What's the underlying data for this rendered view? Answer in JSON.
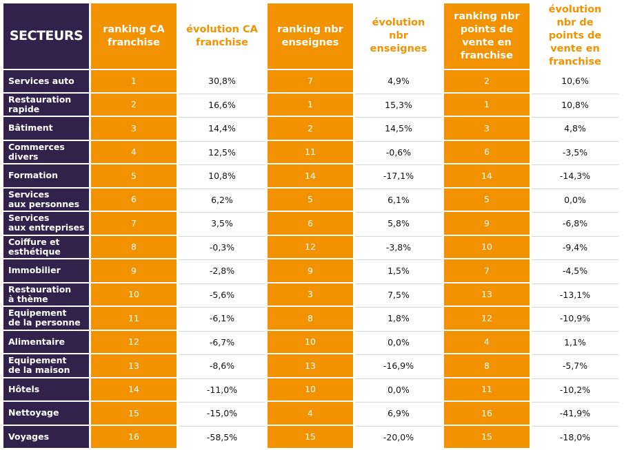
{
  "chart_data": {
    "type": "table",
    "columns": [
      "SECTEURS",
      "ranking CA franchise",
      "évolution CA franchise",
      "ranking nbr enseignes",
      "évolution nbr enseignes",
      "ranking nbr points de vente en franchise",
      "évolution nbr de points de vente en franchise"
    ],
    "rows": [
      [
        "Services auto",
        "1",
        "30,8%",
        "7",
        "4,9%",
        "2",
        "10,6%"
      ],
      [
        "Restauration\nrapide",
        "2",
        "16,6%",
        "1",
        "15,3%",
        "1",
        "10,8%"
      ],
      [
        "Bâtiment",
        "3",
        "14,4%",
        "2",
        "14,5%",
        "3",
        "4,8%"
      ],
      [
        "Commerces\ndivers",
        "4",
        "12,5%",
        "11",
        "-0,6%",
        "6",
        "-3,5%"
      ],
      [
        "Formation",
        "5",
        "10,8%",
        "14",
        "-17,1%",
        "14",
        "-14,3%"
      ],
      [
        "Services\naux personnes",
        "6",
        "6,2%",
        "5",
        "6,1%",
        "5",
        "0,0%"
      ],
      [
        "Services\naux entreprises",
        "7",
        "3,5%",
        "6",
        "5,8%",
        "9",
        "-6,8%"
      ],
      [
        "Coiffure et\nesthétique",
        "8",
        "-0,3%",
        "12",
        "-3,8%",
        "10",
        "-9,4%"
      ],
      [
        "Immobilier",
        "9",
        "-2,8%",
        "9",
        "1,5%",
        "7",
        "-4,5%"
      ],
      [
        "Restauration\nà thème",
        "10",
        "-5,6%",
        "3",
        "7,5%",
        "13",
        "-13,1%"
      ],
      [
        "Equipement\nde la personne",
        "11",
        "-6,1%",
        "8",
        "1,8%",
        "12",
        "-10,9%"
      ],
      [
        "Alimentaire",
        "12",
        "-6,7%",
        "10",
        "0,0%",
        "4",
        "1,1%"
      ],
      [
        "Equipement\nde la maison",
        "13",
        "-8,6%",
        "13",
        "-16,9%",
        "8",
        "-5,7%"
      ],
      [
        "Hôtels",
        "14",
        "-11,0%",
        "10",
        "0,0%",
        "11",
        "-10,2%"
      ],
      [
        "Nettoyage",
        "15",
        "-15,0%",
        "4",
        "6,9%",
        "16",
        "-41,9%"
      ],
      [
        "Voyages",
        "16",
        "-58,5%",
        "15",
        "-20,0%",
        "15",
        "-18,0%"
      ]
    ]
  },
  "colors": {
    "sector_bg": "#30224a",
    "accent": "#f39200",
    "text_on_white": "#111111",
    "header_on_white": "#f39200"
  }
}
